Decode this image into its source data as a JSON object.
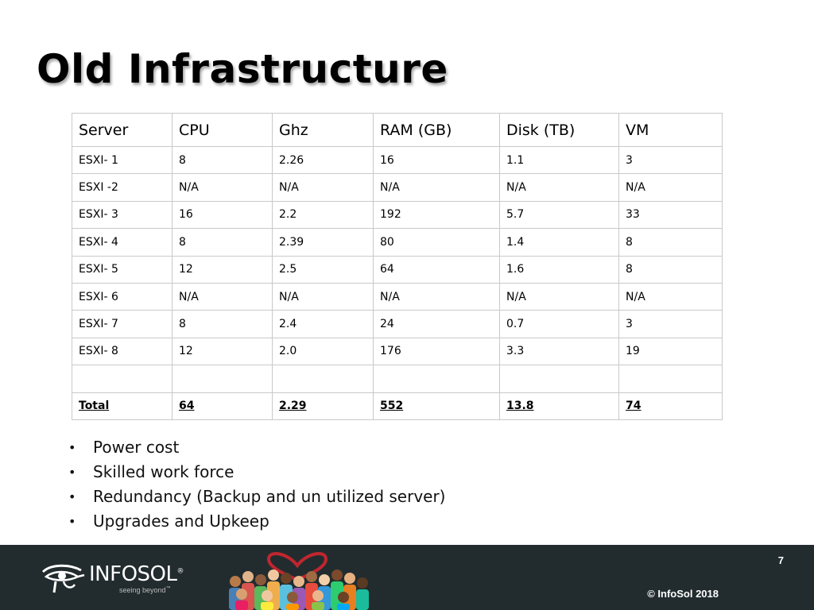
{
  "slide": {
    "title": "Old Infrastructure"
  },
  "table": {
    "headers": [
      "Server",
      "CPU",
      "Ghz",
      "RAM (GB)",
      "Disk (TB)",
      "VM"
    ],
    "rows": [
      [
        "ESXI- 1",
        "8",
        "2.26",
        "16",
        "1.1",
        "3"
      ],
      [
        "ESXI -2",
        "N/A",
        "N/A",
        "N/A",
        "N/A",
        "N/A"
      ],
      [
        "ESXI- 3",
        "16",
        "2.2",
        "192",
        "5.7",
        "33"
      ],
      [
        "ESXI- 4",
        "8",
        "2.39",
        "80",
        "1.4",
        "8"
      ],
      [
        "ESXI- 5",
        "12",
        "2.5",
        "64",
        "1.6",
        "8"
      ],
      [
        "ESXI- 6",
        "N/A",
        "N/A",
        "N/A",
        "N/A",
        "N/A"
      ],
      [
        "ESXI- 7",
        "8",
        "2.4",
        "24",
        "0.7",
        "3"
      ],
      [
        "ESXI- 8",
        "12",
        "2.0",
        "176",
        "3.3",
        "19"
      ],
      [
        "",
        "",
        "",
        "",
        "",
        ""
      ]
    ],
    "total": [
      "Total",
      "64",
      "2.29",
      "552",
      "13.8",
      "74"
    ]
  },
  "bullets": [
    "Power cost",
    "Skilled work force",
    "Redundancy (Backup and un utilized server)",
    "Upgrades and Upkeep"
  ],
  "bullet_glyph": "•",
  "footer": {
    "page_number": "7",
    "copyright": "© InfoSol 2018",
    "logo_text": "INFOSOL",
    "logo_reg": "®",
    "logo_tagline": "seeing beyond",
    "logo_tm": "™",
    "colors": {
      "background": "#222c2f",
      "text": "#ffffff"
    }
  },
  "icons": {
    "logo_mark": "eye-of-horus-icon",
    "footer_illustration": "crowd-with-heart-icon"
  }
}
